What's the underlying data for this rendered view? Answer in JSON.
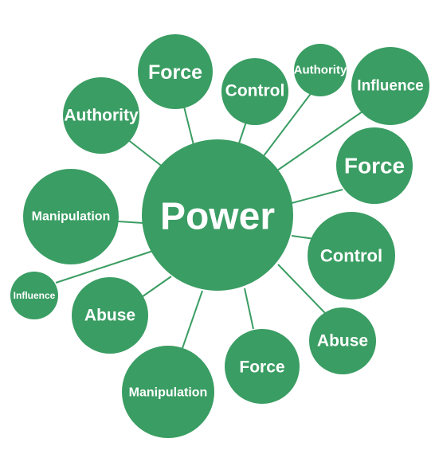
{
  "colors": {
    "bubble": "#3a9d63",
    "connector": "#3a9d63",
    "text": "#ffffff",
    "background": "#ffffff"
  },
  "center": {
    "label": "Power"
  },
  "nodes": [
    {
      "id": "force-1",
      "label": "Force"
    },
    {
      "id": "control-1",
      "label": "Control"
    },
    {
      "id": "authority-1",
      "label": "Authority"
    },
    {
      "id": "influence-1",
      "label": "Influence"
    },
    {
      "id": "authority-2",
      "label": "Authority"
    },
    {
      "id": "force-2",
      "label": "Force"
    },
    {
      "id": "manipulation-1",
      "label": "Manipulation"
    },
    {
      "id": "control-2",
      "label": "Control"
    },
    {
      "id": "influence-2",
      "label": "Influence"
    },
    {
      "id": "abuse-1",
      "label": "Abuse"
    },
    {
      "id": "abuse-2",
      "label": "Abuse"
    },
    {
      "id": "force-3",
      "label": "Force"
    },
    {
      "id": "manipulation-2",
      "label": "Manipulation"
    }
  ]
}
